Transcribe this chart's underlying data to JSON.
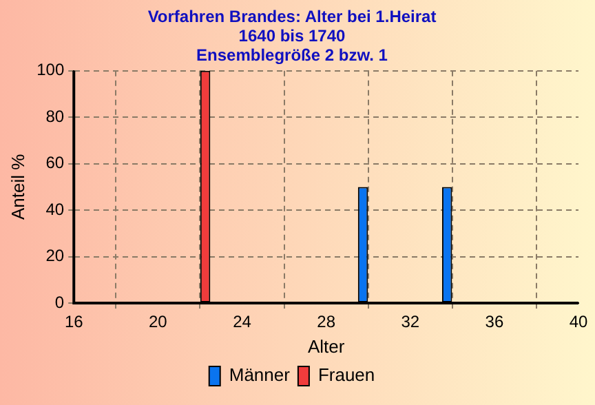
{
  "chart_data": {
    "type": "bar",
    "title": [
      "Vorfahren Brandes: Alter bei 1.Heirat",
      "1640 bis 1740",
      "Ensemblegröße 2 bzw. 1"
    ],
    "x": [
      16,
      17,
      18,
      19,
      20,
      21,
      22,
      23,
      24,
      25,
      26,
      27,
      28,
      29,
      30,
      31,
      32,
      33,
      34,
      35,
      36,
      37,
      38,
      39,
      40
    ],
    "series": [
      {
        "name": "Männer",
        "color": "#0a74f0",
        "values": [
          0,
          0,
          0,
          0,
          0,
          0,
          0,
          0,
          0,
          0,
          0,
          0,
          0,
          0,
          50,
          0,
          0,
          0,
          50,
          0,
          0,
          0,
          0,
          0,
          0
        ]
      },
      {
        "name": "Frauen",
        "color": "#f03c3c",
        "values": [
          0,
          0,
          0,
          0,
          0,
          0,
          100,
          0,
          0,
          0,
          0,
          0,
          0,
          0,
          0,
          0,
          0,
          0,
          0,
          0,
          0,
          0,
          0,
          0,
          0
        ]
      }
    ],
    "xlabel": "Alter",
    "ylabel": "Anteil %",
    "xlim": [
      16,
      40
    ],
    "xticks": [
      16,
      20,
      24,
      28,
      32,
      36,
      40
    ],
    "ylim": [
      0,
      100
    ],
    "yticks": [
      0,
      20,
      40,
      60,
      80,
      100
    ],
    "grid": true,
    "legend": "bottom"
  }
}
